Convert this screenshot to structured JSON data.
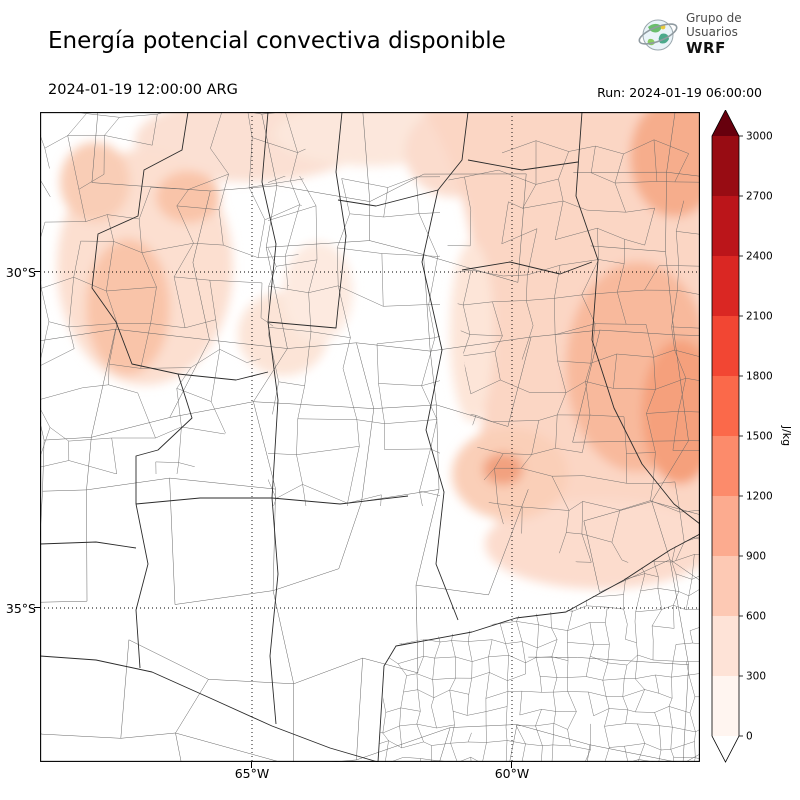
{
  "header": {
    "title": "Energía potencial convectiva disponible",
    "valid_time": "2024-01-19 12:00:00 ARG",
    "run_label": "Run: 2024-01-19 06:00:00",
    "logo": {
      "line1": "Grupo de",
      "line2": "Usuarios",
      "line3": "WRF"
    }
  },
  "map": {
    "y_ticks": [
      "30°S",
      "35°S"
    ],
    "x_ticks": [
      "65°W",
      "60°W"
    ]
  },
  "colorbar": {
    "unit": "J/kg",
    "ticks_top_to_bottom": [
      "3000",
      "2700",
      "2400",
      "2100",
      "1800",
      "1500",
      "1200",
      "900",
      "600",
      "300",
      "0"
    ],
    "colors_bottom_to_top": [
      "#fff5f0",
      "#fee3d7",
      "#fdc9b4",
      "#fcab8f",
      "#fc8b6b",
      "#fb694a",
      "#f24633",
      "#da2723",
      "#bb151a",
      "#980c13"
    ],
    "over_color": "#67000d",
    "under_color": "#ffffff"
  }
}
